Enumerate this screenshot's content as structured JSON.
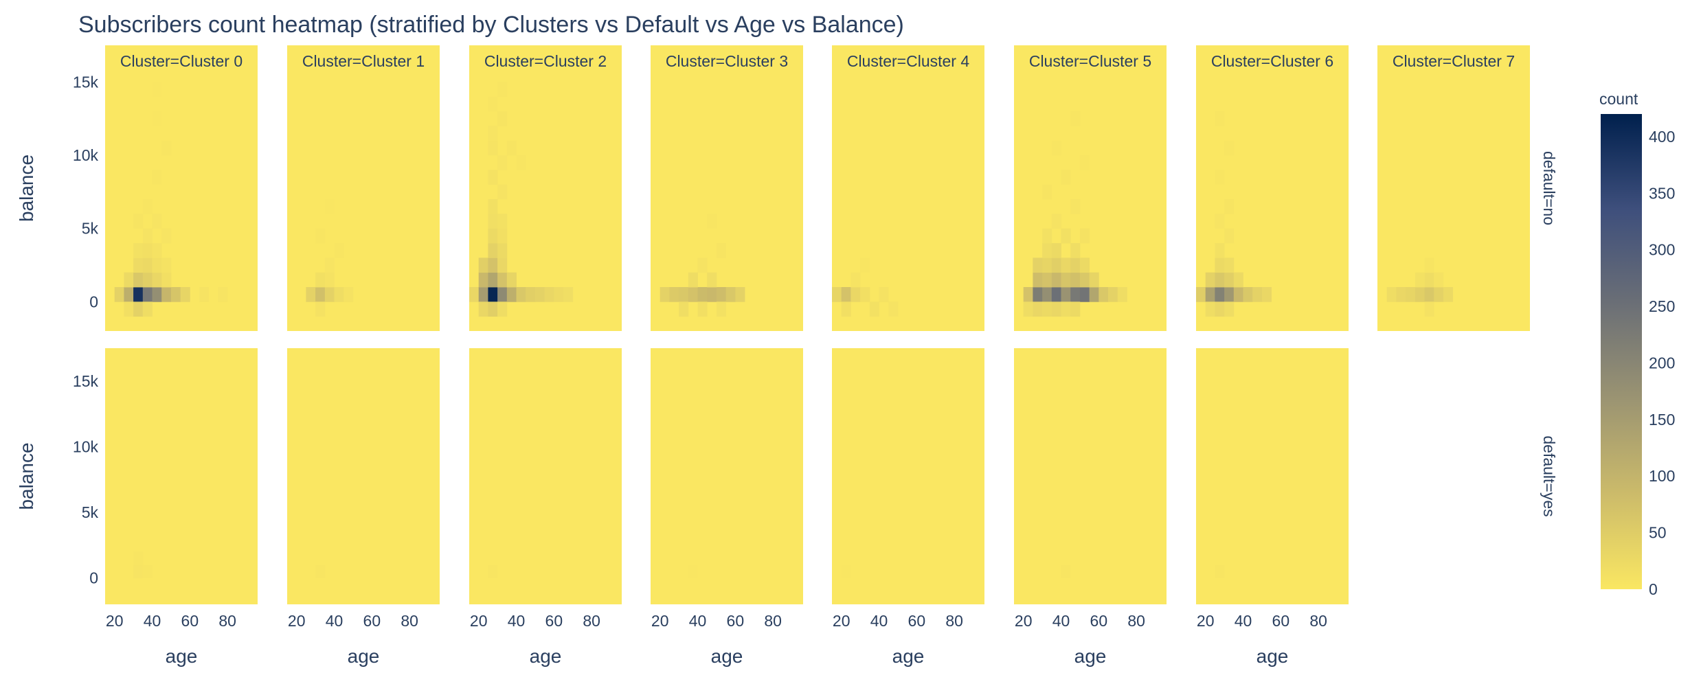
{
  "chart_data": {
    "type": "heatmap",
    "title": "Subscribers count heatmap (stratified by Clusters vs Default vs Age vs Balance)",
    "xlabel": "age",
    "ylabel": "balance",
    "x_ticks": [
      "20",
      "40",
      "60",
      "80"
    ],
    "y_ticks": [
      "0",
      "5k",
      "10k",
      "15k"
    ],
    "xlim": [
      15,
      96
    ],
    "ylim": [
      -2000,
      17500
    ],
    "facet_columns": [
      "Cluster=Cluster 0",
      "Cluster=Cluster 1",
      "Cluster=Cluster 2",
      "Cluster=Cluster 3",
      "Cluster=Cluster 4",
      "Cluster=Cluster 5",
      "Cluster=Cluster 6",
      "Cluster=Cluster 7"
    ],
    "facet_rows": [
      "default=no",
      "default=yes"
    ],
    "colorbar": {
      "title": "count",
      "range": [
        0,
        420
      ],
      "ticks": [
        "0",
        "50",
        "100",
        "150",
        "200",
        "250",
        "300",
        "350",
        "400"
      ],
      "colors": [
        "#fae762",
        "#ccbb6a",
        "#9b9472",
        "#6b6f76",
        "#3e4f7c",
        "#00204d"
      ]
    },
    "empty_panels": [
      [
        1,
        7
      ]
    ],
    "age_bins": [
      15,
      20,
      25,
      30,
      35,
      40,
      45,
      50,
      55,
      60,
      65,
      70,
      75,
      80,
      85,
      90,
      95
    ],
    "balance_bins": [
      -2000,
      -1000,
      0,
      1000,
      2000,
      3000,
      4000,
      5000,
      6000,
      7000,
      8000,
      9000,
      10000,
      11000,
      12000,
      13000,
      14000,
      15000,
      16000,
      17000
    ],
    "panels": [
      {
        "cluster": "Cluster 0",
        "default": "no",
        "cells": [
          [
            20,
            0,
            40
          ],
          [
            25,
            0,
            110
          ],
          [
            30,
            0,
            390
          ],
          [
            35,
            0,
            230
          ],
          [
            40,
            0,
            180
          ],
          [
            45,
            0,
            95
          ],
          [
            50,
            0,
            65
          ],
          [
            55,
            0,
            35
          ],
          [
            25,
            -1000,
            15
          ],
          [
            30,
            -1000,
            40
          ],
          [
            35,
            -1000,
            20
          ],
          [
            25,
            1000,
            25
          ],
          [
            30,
            1000,
            60
          ],
          [
            35,
            1000,
            45
          ],
          [
            40,
            1000,
            30
          ],
          [
            45,
            1000,
            15
          ],
          [
            30,
            2000,
            22
          ],
          [
            35,
            2000,
            26
          ],
          [
            40,
            2000,
            15
          ],
          [
            45,
            2000,
            10
          ],
          [
            30,
            3000,
            12
          ],
          [
            35,
            3000,
            15
          ],
          [
            40,
            3000,
            10
          ],
          [
            35,
            4000,
            8
          ],
          [
            45,
            4000,
            6
          ],
          [
            30,
            5000,
            5
          ],
          [
            40,
            5000,
            6
          ],
          [
            35,
            6000,
            4
          ],
          [
            40,
            8000,
            3
          ],
          [
            45,
            10000,
            3
          ],
          [
            40,
            12000,
            2
          ],
          [
            40,
            14000,
            2
          ],
          [
            75,
            0,
            6
          ],
          [
            65,
            0,
            8
          ]
        ]
      },
      {
        "cluster": "Cluster 1",
        "default": "no",
        "cells": [
          [
            25,
            0,
            40
          ],
          [
            30,
            0,
            75
          ],
          [
            35,
            0,
            40
          ],
          [
            40,
            0,
            20
          ],
          [
            45,
            0,
            10
          ],
          [
            30,
            -1000,
            10
          ],
          [
            30,
            1000,
            14
          ],
          [
            35,
            1000,
            10
          ],
          [
            35,
            2000,
            6
          ],
          [
            40,
            3000,
            4
          ],
          [
            30,
            4000,
            3
          ],
          [
            35,
            6000,
            2
          ]
        ]
      },
      {
        "cluster": "Cluster 2",
        "default": "no",
        "cells": [
          [
            15,
            0,
            30
          ],
          [
            20,
            0,
            150
          ],
          [
            25,
            0,
            410
          ],
          [
            30,
            0,
            190
          ],
          [
            35,
            0,
            110
          ],
          [
            40,
            0,
            60
          ],
          [
            45,
            0,
            45
          ],
          [
            50,
            0,
            40
          ],
          [
            55,
            0,
            30
          ],
          [
            60,
            0,
            22
          ],
          [
            65,
            0,
            18
          ],
          [
            20,
            -1000,
            30
          ],
          [
            25,
            -1000,
            45
          ],
          [
            30,
            -1000,
            20
          ],
          [
            20,
            1000,
            90
          ],
          [
            25,
            1000,
            130
          ],
          [
            30,
            1000,
            70
          ],
          [
            35,
            1000,
            35
          ],
          [
            20,
            2000,
            45
          ],
          [
            25,
            2000,
            70
          ],
          [
            30,
            2000,
            30
          ],
          [
            25,
            3000,
            40
          ],
          [
            30,
            3000,
            25
          ],
          [
            25,
            4000,
            25
          ],
          [
            30,
            4000,
            15
          ],
          [
            25,
            5000,
            16
          ],
          [
            30,
            5000,
            12
          ],
          [
            25,
            6000,
            14
          ],
          [
            30,
            7000,
            8
          ],
          [
            25,
            8000,
            10
          ],
          [
            30,
            9000,
            6
          ],
          [
            25,
            10000,
            8
          ],
          [
            35,
            10000,
            5
          ],
          [
            25,
            11000,
            6
          ],
          [
            30,
            12000,
            5
          ],
          [
            25,
            13000,
            4
          ],
          [
            30,
            14000,
            3
          ],
          [
            40,
            9000,
            4
          ]
        ]
      },
      {
        "cluster": "Cluster 3",
        "default": "no",
        "cells": [
          [
            20,
            0,
            40
          ],
          [
            25,
            0,
            55
          ],
          [
            30,
            0,
            60
          ],
          [
            35,
            0,
            70
          ],
          [
            40,
            0,
            85
          ],
          [
            45,
            0,
            90
          ],
          [
            50,
            0,
            80
          ],
          [
            55,
            0,
            60
          ],
          [
            60,
            0,
            40
          ],
          [
            30,
            -1000,
            18
          ],
          [
            40,
            -1000,
            15
          ],
          [
            50,
            -1000,
            12
          ],
          [
            35,
            1000,
            20
          ],
          [
            45,
            1000,
            18
          ],
          [
            40,
            2000,
            8
          ],
          [
            50,
            3000,
            5
          ],
          [
            45,
            5000,
            3
          ]
        ]
      },
      {
        "cluster": "Cluster 4",
        "default": "no",
        "cells": [
          [
            15,
            0,
            35
          ],
          [
            20,
            0,
            70
          ],
          [
            25,
            0,
            30
          ],
          [
            30,
            0,
            15
          ],
          [
            40,
            0,
            10
          ],
          [
            20,
            -1000,
            15
          ],
          [
            35,
            -1000,
            12
          ],
          [
            45,
            -1000,
            8
          ],
          [
            25,
            1000,
            8
          ],
          [
            30,
            2000,
            4
          ]
        ]
      },
      {
        "cluster": "Cluster 5",
        "default": "no",
        "cells": [
          [
            20,
            0,
            70
          ],
          [
            25,
            0,
            220
          ],
          [
            30,
            0,
            180
          ],
          [
            35,
            0,
            250
          ],
          [
            40,
            0,
            170
          ],
          [
            45,
            0,
            230
          ],
          [
            50,
            0,
            240
          ],
          [
            55,
            0,
            130
          ],
          [
            60,
            0,
            60
          ],
          [
            65,
            0,
            40
          ],
          [
            70,
            0,
            20
          ],
          [
            20,
            -1000,
            20
          ],
          [
            25,
            -1000,
            30
          ],
          [
            30,
            -1000,
            25
          ],
          [
            35,
            -1000,
            30
          ],
          [
            40,
            -1000,
            20
          ],
          [
            45,
            -1000,
            25
          ],
          [
            25,
            1000,
            80
          ],
          [
            30,
            1000,
            70
          ],
          [
            35,
            1000,
            90
          ],
          [
            40,
            1000,
            65
          ],
          [
            45,
            1000,
            75
          ],
          [
            50,
            1000,
            60
          ],
          [
            55,
            1000,
            35
          ],
          [
            25,
            2000,
            40
          ],
          [
            30,
            2000,
            35
          ],
          [
            35,
            2000,
            45
          ],
          [
            40,
            2000,
            30
          ],
          [
            45,
            2000,
            40
          ],
          [
            50,
            2000,
            25
          ],
          [
            30,
            3000,
            20
          ],
          [
            35,
            3000,
            25
          ],
          [
            45,
            3000,
            18
          ],
          [
            30,
            4000,
            12
          ],
          [
            40,
            4000,
            14
          ],
          [
            50,
            4000,
            10
          ],
          [
            35,
            5000,
            8
          ],
          [
            45,
            6000,
            6
          ],
          [
            30,
            7000,
            5
          ],
          [
            40,
            8000,
            5
          ],
          [
            50,
            9000,
            4
          ],
          [
            35,
            10000,
            4
          ],
          [
            45,
            12000,
            3
          ]
        ]
      },
      {
        "cluster": "Cluster 6",
        "default": "no",
        "cells": [
          [
            15,
            0,
            50
          ],
          [
            20,
            0,
            140
          ],
          [
            25,
            0,
            210
          ],
          [
            30,
            0,
            160
          ],
          [
            35,
            0,
            90
          ],
          [
            40,
            0,
            60
          ],
          [
            45,
            0,
            40
          ],
          [
            50,
            0,
            30
          ],
          [
            20,
            -1000,
            20
          ],
          [
            25,
            -1000,
            30
          ],
          [
            30,
            -1000,
            20
          ],
          [
            20,
            1000,
            40
          ],
          [
            25,
            1000,
            60
          ],
          [
            30,
            1000,
            45
          ],
          [
            35,
            1000,
            25
          ],
          [
            25,
            2000,
            25
          ],
          [
            30,
            2000,
            20
          ],
          [
            25,
            3000,
            12
          ],
          [
            30,
            4000,
            8
          ],
          [
            25,
            5000,
            6
          ],
          [
            30,
            6000,
            5
          ],
          [
            25,
            8000,
            4
          ],
          [
            30,
            10000,
            3
          ],
          [
            25,
            12000,
            3
          ]
        ]
      },
      {
        "cluster": "Cluster 7",
        "default": "no",
        "cells": [
          [
            20,
            0,
            20
          ],
          [
            25,
            0,
            30
          ],
          [
            30,
            0,
            35
          ],
          [
            35,
            0,
            45
          ],
          [
            40,
            0,
            60
          ],
          [
            45,
            0,
            40
          ],
          [
            50,
            0,
            25
          ],
          [
            40,
            1000,
            20
          ],
          [
            35,
            1000,
            12
          ],
          [
            45,
            1000,
            10
          ],
          [
            40,
            -1000,
            10
          ],
          [
            40,
            2000,
            5
          ]
        ]
      },
      {
        "cluster": "Cluster 0",
        "default": "yes",
        "cells": [
          [
            30,
            0,
            6
          ],
          [
            35,
            0,
            4
          ],
          [
            30,
            1000,
            3
          ]
        ]
      },
      {
        "cluster": "Cluster 1",
        "default": "yes",
        "cells": [
          [
            30,
            0,
            3
          ]
        ]
      },
      {
        "cluster": "Cluster 2",
        "default": "yes",
        "cells": [
          [
            25,
            0,
            3
          ]
        ]
      },
      {
        "cluster": "Cluster 3",
        "default": "yes",
        "cells": [
          [
            35,
            0,
            2
          ]
        ]
      },
      {
        "cluster": "Cluster 4",
        "default": "yes",
        "cells": [
          [
            20,
            0,
            2
          ]
        ]
      },
      {
        "cluster": "Cluster 5",
        "default": "yes",
        "cells": [
          [
            40,
            0,
            3
          ]
        ]
      },
      {
        "cluster": "Cluster 6",
        "default": "yes",
        "cells": [
          [
            25,
            0,
            3
          ]
        ]
      }
    ]
  }
}
